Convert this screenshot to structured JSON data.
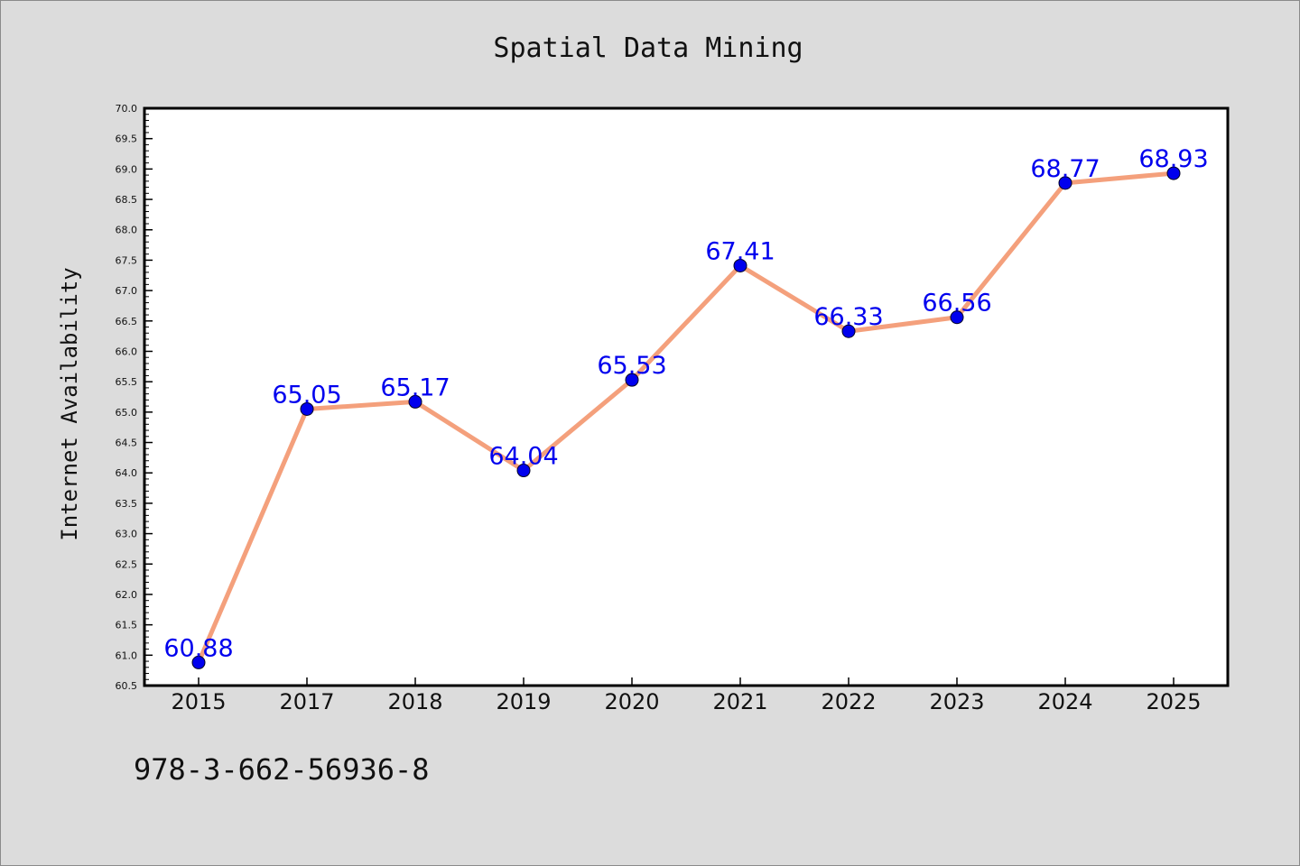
{
  "chart_data": {
    "type": "line",
    "title": "Spatial Data Mining",
    "xlabel": "",
    "ylabel": "Internet Availability",
    "categories": [
      "2015",
      "2017",
      "2018",
      "2019",
      "2020",
      "2021",
      "2022",
      "2023",
      "2024",
      "2025"
    ],
    "values": [
      60.88,
      65.05,
      65.17,
      64.04,
      65.53,
      67.41,
      66.33,
      66.56,
      68.77,
      68.93
    ],
    "data_labels": [
      "60.88",
      "65.05",
      "65.17",
      "64.04",
      "65.53",
      "67.41",
      "66.33",
      "66.56",
      "68.77",
      "68.93"
    ],
    "ylim": [
      60.5,
      70.0
    ],
    "y_ticks": [
      "60.5",
      "61.0",
      "61.5",
      "62.0",
      "62.5",
      "63.0",
      "63.5",
      "64.0",
      "64.5",
      "65.0",
      "65.5",
      "66.0",
      "66.5",
      "67.0",
      "67.5",
      "68.0",
      "68.5",
      "69.0",
      "69.5",
      "70.0"
    ],
    "grid": false,
    "legend": "none",
    "colors": {
      "line": "#f4a07c",
      "marker": "#0000ee",
      "label": "#0000ee",
      "background": "#dcdcdc",
      "plot_background": "#ffffff"
    }
  },
  "footer": {
    "isbn": "978-3-662-56936-8"
  }
}
